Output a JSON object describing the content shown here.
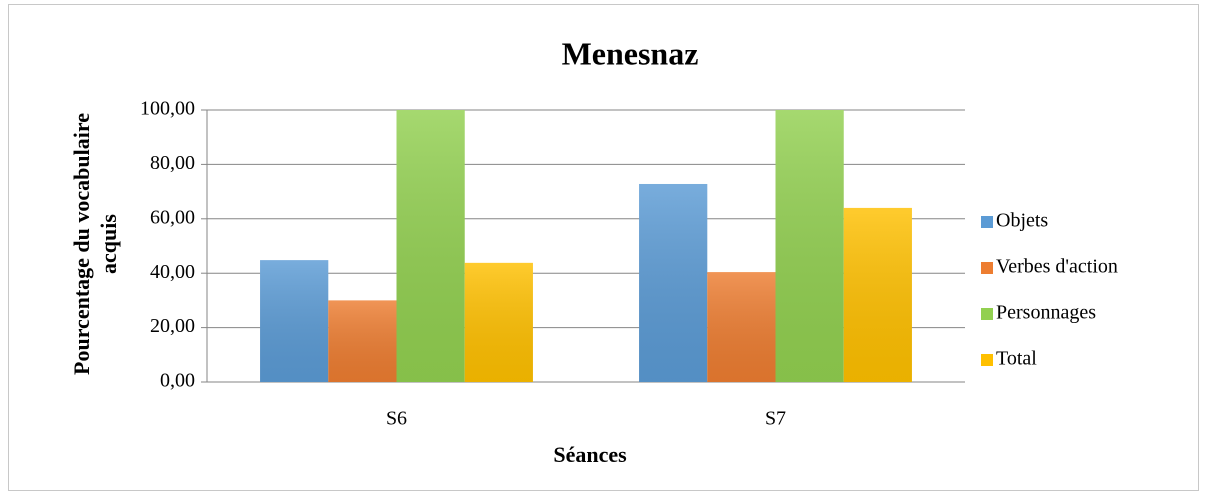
{
  "chart_data": {
    "type": "bar",
    "title": "Menesnaz",
    "x_label": "Séances",
    "y_label": "Pourcentage du vocabulaire acquis",
    "categories": [
      "S6",
      "S7"
    ],
    "series": [
      {
        "name": "Objets",
        "color": "#5b9bd5",
        "values": [
          44.8,
          72.8
        ]
      },
      {
        "name": "Verbes d'action",
        "color": "#ed7d31",
        "values": [
          30,
          40.4
        ]
      },
      {
        "name": "Personnages",
        "color": "#92d050",
        "values": [
          100,
          100
        ]
      },
      {
        "name": "Total",
        "color": "#ffc000",
        "values": [
          43.8,
          64
        ]
      }
    ],
    "ylim": [
      0,
      100
    ],
    "yticks": [
      {
        "value": 0,
        "label": "0,00"
      },
      {
        "value": 20,
        "label": "20,00"
      },
      {
        "value": 40,
        "label": "40,00"
      },
      {
        "value": 60,
        "label": "60,00"
      },
      {
        "value": 80,
        "label": "80,00"
      },
      {
        "value": 100,
        "label": "100,00"
      }
    ],
    "grid": true,
    "legend": "right"
  }
}
